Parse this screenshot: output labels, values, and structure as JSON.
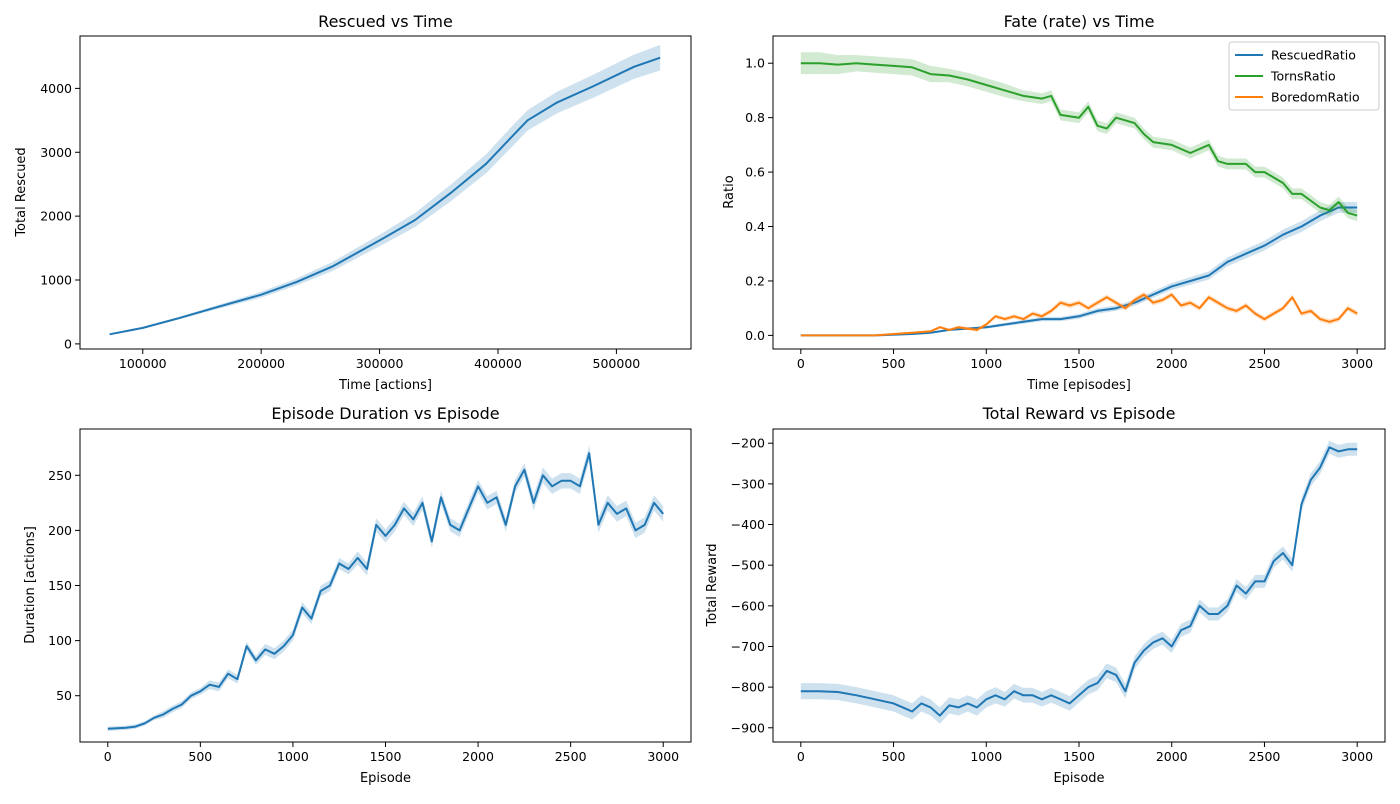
{
  "figure": {
    "panels": [
      {
        "id": "rescued",
        "title": "Rescued vs Time",
        "xlabel": "Time [actions]",
        "ylabel": "Total Rescued"
      },
      {
        "id": "fate",
        "title": "Fate (rate) vs Time",
        "xlabel": "Time [episodes]",
        "ylabel": "Ratio"
      },
      {
        "id": "duration",
        "title": "Episode Duration vs Episode",
        "xlabel": "Episode",
        "ylabel": "Duration [actions]"
      },
      {
        "id": "reward",
        "title": "Total Reward vs Episode",
        "xlabel": "Episode",
        "ylabel": "Total Reward"
      }
    ]
  },
  "chart_data": [
    {
      "type": "line",
      "title": "Rescued vs Time",
      "xlabel": "Time [actions]",
      "ylabel": "Total Rescued",
      "xlim": [
        47000,
        563000
      ],
      "ylim": [
        -80,
        4820
      ],
      "xticks": [
        100000,
        200000,
        300000,
        400000,
        500000
      ],
      "xtick_labels": [
        "100000",
        "200000",
        "300000",
        "400000",
        "500000"
      ],
      "yticks": [
        0,
        1000,
        2000,
        3000,
        4000
      ],
      "ytick_labels": [
        "0",
        "1000",
        "2000",
        "3000",
        "4000"
      ],
      "grid": false,
      "series": [
        {
          "color": "#1f77b4",
          "x": [
            72000,
            100000,
            130000,
            160000,
            200000,
            230000,
            260000,
            300000,
            330000,
            360000,
            390000,
            410000,
            425000,
            450000,
            480000,
            515000,
            537000
          ],
          "y": [
            150,
            250,
            400,
            560,
            770,
            970,
            1210,
            1620,
            1940,
            2360,
            2820,
            3210,
            3500,
            3780,
            4030,
            4340,
            4480
          ],
          "band": [
            10,
            15,
            20,
            30,
            45,
            55,
            70,
            90,
            110,
            130,
            150,
            160,
            160,
            170,
            180,
            190,
            200
          ]
        }
      ]
    },
    {
      "type": "line",
      "title": "Fate (rate) vs Time",
      "xlabel": "Time [episodes]",
      "ylabel": "Ratio",
      "xlim": [
        -150,
        3150
      ],
      "ylim": [
        -0.05,
        1.1
      ],
      "xticks": [
        0,
        500,
        1000,
        1500,
        2000,
        2500,
        3000
      ],
      "xtick_labels": [
        "0",
        "500",
        "1000",
        "1500",
        "2000",
        "2500",
        "3000"
      ],
      "yticks": [
        0.0,
        0.2,
        0.4,
        0.6,
        0.8,
        1.0
      ],
      "ytick_labels": [
        "0.0",
        "0.2",
        "0.4",
        "0.6",
        "0.8",
        "1.0"
      ],
      "grid": false,
      "legend": {
        "position": "top-right",
        "entries": [
          "RescuedRatio",
          "TornsRatio",
          "BoredomRatio"
        ]
      },
      "series": [
        {
          "name": "RescuedRatio",
          "color": "#1f77b4",
          "x": [
            0,
            200,
            400,
            600,
            700,
            800,
            900,
            1000,
            1100,
            1200,
            1300,
            1400,
            1500,
            1600,
            1700,
            1800,
            1900,
            2000,
            2100,
            2200,
            2300,
            2400,
            2500,
            2600,
            2700,
            2800,
            2900,
            3000
          ],
          "y": [
            0.0,
            0.0,
            0.0,
            0.005,
            0.01,
            0.02,
            0.025,
            0.03,
            0.04,
            0.05,
            0.06,
            0.06,
            0.07,
            0.09,
            0.1,
            0.12,
            0.15,
            0.18,
            0.2,
            0.22,
            0.27,
            0.3,
            0.33,
            0.37,
            0.4,
            0.44,
            0.47,
            0.47
          ],
          "band": [
            0,
            0,
            0,
            0.002,
            0.003,
            0.004,
            0.005,
            0.005,
            0.006,
            0.007,
            0.008,
            0.008,
            0.009,
            0.01,
            0.01,
            0.011,
            0.012,
            0.013,
            0.014,
            0.015,
            0.016,
            0.017,
            0.018,
            0.019,
            0.02,
            0.02,
            0.02,
            0.02
          ]
        },
        {
          "name": "TornsRatio",
          "color": "#2ca02c",
          "x": [
            0,
            100,
            200,
            300,
            400,
            500,
            600,
            700,
            800,
            900,
            1000,
            1100,
            1200,
            1300,
            1350,
            1400,
            1500,
            1550,
            1600,
            1650,
            1700,
            1800,
            1850,
            1900,
            2000,
            2100,
            2200,
            2250,
            2300,
            2400,
            2450,
            2500,
            2600,
            2650,
            2700,
            2800,
            2850,
            2900,
            2950,
            3000
          ],
          "y": [
            1.0,
            1.0,
            0.995,
            1.0,
            0.995,
            0.99,
            0.985,
            0.96,
            0.955,
            0.94,
            0.92,
            0.9,
            0.88,
            0.87,
            0.88,
            0.81,
            0.8,
            0.84,
            0.77,
            0.76,
            0.8,
            0.78,
            0.74,
            0.71,
            0.7,
            0.67,
            0.7,
            0.64,
            0.63,
            0.63,
            0.6,
            0.6,
            0.56,
            0.52,
            0.52,
            0.47,
            0.46,
            0.49,
            0.45,
            0.44
          ],
          "band": [
            0.04,
            0.04,
            0.035,
            0.03,
            0.03,
            0.03,
            0.03,
            0.03,
            0.025,
            0.025,
            0.025,
            0.025,
            0.02,
            0.02,
            0.02,
            0.02,
            0.02,
            0.02,
            0.02,
            0.02,
            0.02,
            0.02,
            0.02,
            0.02,
            0.02,
            0.02,
            0.02,
            0.02,
            0.02,
            0.02,
            0.02,
            0.02,
            0.02,
            0.02,
            0.02,
            0.02,
            0.02,
            0.02,
            0.02,
            0.02
          ]
        },
        {
          "name": "BoredomRatio",
          "color": "#ff7f0e",
          "x": [
            0,
            200,
            400,
            500,
            600,
            700,
            750,
            800,
            850,
            900,
            950,
            1000,
            1050,
            1100,
            1150,
            1200,
            1250,
            1300,
            1350,
            1400,
            1450,
            1500,
            1550,
            1600,
            1650,
            1700,
            1750,
            1800,
            1850,
            1900,
            1950,
            2000,
            2050,
            2100,
            2150,
            2200,
            2250,
            2300,
            2350,
            2400,
            2450,
            2500,
            2550,
            2600,
            2650,
            2700,
            2750,
            2800,
            2850,
            2900,
            2950,
            3000
          ],
          "y": [
            0.0,
            0.0,
            0.0,
            0.005,
            0.01,
            0.015,
            0.03,
            0.02,
            0.03,
            0.025,
            0.02,
            0.04,
            0.07,
            0.06,
            0.07,
            0.06,
            0.08,
            0.07,
            0.09,
            0.12,
            0.11,
            0.12,
            0.1,
            0.12,
            0.14,
            0.12,
            0.1,
            0.13,
            0.15,
            0.12,
            0.13,
            0.15,
            0.11,
            0.12,
            0.1,
            0.14,
            0.12,
            0.1,
            0.09,
            0.11,
            0.08,
            0.06,
            0.08,
            0.1,
            0.14,
            0.08,
            0.09,
            0.06,
            0.05,
            0.06,
            0.1,
            0.08
          ],
          "band": [
            0,
            0,
            0,
            0.002,
            0.003,
            0.004,
            0.005,
            0.005,
            0.006,
            0.006,
            0.006,
            0.007,
            0.007,
            0.008,
            0.008,
            0.008,
            0.009,
            0.009,
            0.01,
            0.01,
            0.01,
            0.01,
            0.01,
            0.01,
            0.01,
            0.01,
            0.01,
            0.01,
            0.01,
            0.01,
            0.01,
            0.01,
            0.01,
            0.01,
            0.01,
            0.01,
            0.01,
            0.01,
            0.01,
            0.01,
            0.01,
            0.01,
            0.01,
            0.01,
            0.01,
            0.01,
            0.01,
            0.01,
            0.01,
            0.01,
            0.01,
            0.01
          ]
        }
      ]
    },
    {
      "type": "line",
      "title": "Episode Duration vs Episode",
      "xlabel": "Episode",
      "ylabel": "Duration [actions]",
      "xlim": [
        -150,
        3150
      ],
      "ylim": [
        8,
        292
      ],
      "xticks": [
        0,
        500,
        1000,
        1500,
        2000,
        2500,
        3000
      ],
      "xtick_labels": [
        "0",
        "500",
        "1000",
        "1500",
        "2000",
        "2500",
        "3000"
      ],
      "yticks": [
        50,
        100,
        150,
        200,
        250
      ],
      "ytick_labels": [
        "50",
        "100",
        "150",
        "200",
        "250"
      ],
      "grid": false,
      "series": [
        {
          "color": "#1f77b4",
          "x": [
            0,
            100,
            150,
            200,
            250,
            300,
            350,
            400,
            450,
            500,
            550,
            600,
            650,
            700,
            750,
            800,
            850,
            900,
            950,
            1000,
            1050,
            1100,
            1150,
            1200,
            1250,
            1300,
            1350,
            1400,
            1450,
            1500,
            1550,
            1600,
            1650,
            1700,
            1750,
            1800,
            1850,
            1900,
            1950,
            2000,
            2050,
            2100,
            2150,
            2200,
            2250,
            2300,
            2350,
            2400,
            2450,
            2500,
            2550,
            2600,
            2650,
            2700,
            2750,
            2800,
            2850,
            2900,
            2950,
            3000
          ],
          "y": [
            20,
            21,
            22,
            25,
            30,
            33,
            38,
            42,
            50,
            54,
            60,
            58,
            70,
            65,
            95,
            82,
            92,
            88,
            95,
            105,
            130,
            120,
            145,
            150,
            170,
            165,
            175,
            165,
            205,
            195,
            205,
            220,
            210,
            225,
            190,
            230,
            205,
            200,
            220,
            240,
            225,
            230,
            205,
            240,
            255,
            225,
            250,
            240,
            245,
            245,
            240,
            270,
            205,
            225,
            215,
            220,
            200,
            205,
            225,
            215
          ],
          "band": [
            2,
            2,
            2,
            2,
            2,
            3,
            3,
            3,
            3,
            3,
            4,
            4,
            4,
            4,
            4,
            4,
            5,
            5,
            5,
            5,
            5,
            5,
            5,
            5,
            5,
            5,
            6,
            6,
            6,
            6,
            6,
            6,
            6,
            6,
            6,
            6,
            6,
            6,
            6,
            6,
            6,
            6,
            6,
            6,
            6,
            7,
            7,
            7,
            7,
            7,
            7,
            7,
            7,
            7,
            7,
            7,
            7,
            7,
            7,
            7
          ]
        }
      ]
    },
    {
      "type": "line",
      "title": "Total Reward vs Episode",
      "xlabel": "Episode",
      "ylabel": "Total Reward",
      "xlim": [
        -150,
        3150
      ],
      "ylim": [
        -935,
        -165
      ],
      "xticks": [
        0,
        500,
        1000,
        1500,
        2000,
        2500,
        3000
      ],
      "xtick_labels": [
        "0",
        "500",
        "1000",
        "1500",
        "2000",
        "2500",
        "3000"
      ],
      "yticks": [
        -900,
        -800,
        -700,
        -600,
        -500,
        -400,
        -300,
        -200
      ],
      "ytick_labels": [
        "−900",
        "−800",
        "−700",
        "−600",
        "−500",
        "−400",
        "−300",
        "−200"
      ],
      "grid": false,
      "series": [
        {
          "color": "#1f77b4",
          "x": [
            0,
            100,
            200,
            300,
            400,
            500,
            550,
            600,
            650,
            700,
            750,
            800,
            850,
            900,
            950,
            1000,
            1050,
            1100,
            1150,
            1200,
            1250,
            1300,
            1350,
            1400,
            1450,
            1500,
            1550,
            1600,
            1650,
            1700,
            1750,
            1800,
            1850,
            1900,
            1950,
            2000,
            2050,
            2100,
            2150,
            2200,
            2250,
            2300,
            2350,
            2400,
            2450,
            2500,
            2550,
            2600,
            2650,
            2700,
            2750,
            2800,
            2850,
            2900,
            2950,
            3000
          ],
          "y": [
            -810,
            -810,
            -812,
            -820,
            -830,
            -840,
            -850,
            -860,
            -840,
            -850,
            -870,
            -845,
            -850,
            -840,
            -850,
            -830,
            -820,
            -830,
            -810,
            -820,
            -820,
            -830,
            -820,
            -830,
            -840,
            -820,
            -800,
            -790,
            -760,
            -770,
            -810,
            -740,
            -710,
            -690,
            -680,
            -700,
            -660,
            -650,
            -600,
            -620,
            -620,
            -600,
            -550,
            -570,
            -540,
            -540,
            -490,
            -470,
            -500,
            -350,
            -290,
            -260,
            -210,
            -220,
            -215,
            -215
          ],
          "band": [
            20,
            20,
            20,
            20,
            20,
            20,
            20,
            20,
            20,
            20,
            20,
            20,
            20,
            20,
            20,
            20,
            20,
            18,
            18,
            18,
            18,
            18,
            18,
            18,
            18,
            18,
            18,
            18,
            18,
            18,
            18,
            16,
            16,
            16,
            16,
            16,
            16,
            16,
            16,
            16,
            16,
            16,
            16,
            16,
            16,
            16,
            16,
            16,
            16,
            16,
            16,
            16,
            16,
            16,
            16,
            16
          ]
        }
      ]
    }
  ]
}
